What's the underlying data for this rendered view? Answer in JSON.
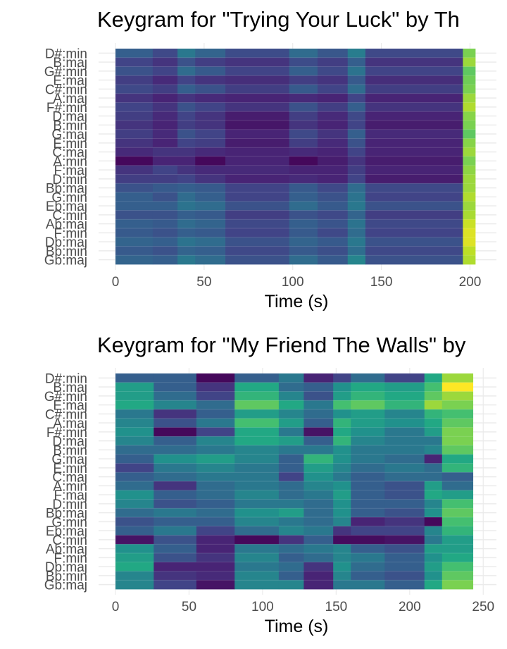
{
  "chart_data": [
    {
      "type": "heatmap",
      "title": "Keygram for \"Trying Your Luck\" by Th",
      "xlabel": "Time (s)",
      "ylabel": "",
      "xlim": [
        0,
        205
      ],
      "xticks": [
        0,
        50,
        100,
        150,
        200
      ],
      "grid": true,
      "legend": "none",
      "colormap": "viridis",
      "keys": [
        "D#:min",
        "B:maj",
        "G#:min",
        "E:maj",
        "C#:min",
        "A:maj",
        "F#:min",
        "D:maj",
        "B:min",
        "G:maj",
        "E:min",
        "C:maj",
        "A:min",
        "F:maj",
        "D:min",
        "Bb:maj",
        "G:min",
        "Eb:maj",
        "C:min",
        "Ab:maj",
        "F:min",
        "Db:maj",
        "Bb:min",
        "Gb:maj"
      ],
      "time_edges": [
        0,
        21,
        35,
        45,
        62,
        98,
        114,
        131,
        141,
        196,
        203
      ],
      "values": [
        [
          0.3,
          0.22,
          0.4,
          0.32,
          0.23,
          0.35,
          0.27,
          0.42,
          0.22,
          0.8
        ],
        [
          0.2,
          0.15,
          0.25,
          0.18,
          0.15,
          0.23,
          0.18,
          0.3,
          0.15,
          0.85
        ],
        [
          0.25,
          0.2,
          0.35,
          0.28,
          0.2,
          0.3,
          0.22,
          0.38,
          0.2,
          0.75
        ],
        [
          0.18,
          0.12,
          0.2,
          0.15,
          0.13,
          0.18,
          0.15,
          0.28,
          0.13,
          0.78
        ],
        [
          0.22,
          0.18,
          0.3,
          0.25,
          0.18,
          0.28,
          0.2,
          0.35,
          0.18,
          0.8
        ],
        [
          0.15,
          0.1,
          0.15,
          0.12,
          0.1,
          0.12,
          0.1,
          0.2,
          0.1,
          0.85
        ],
        [
          0.2,
          0.15,
          0.25,
          0.2,
          0.15,
          0.25,
          0.18,
          0.3,
          0.15,
          0.88
        ],
        [
          0.18,
          0.12,
          0.2,
          0.15,
          0.08,
          0.18,
          0.12,
          0.22,
          0.1,
          0.82
        ],
        [
          0.15,
          0.1,
          0.18,
          0.15,
          0.06,
          0.15,
          0.1,
          0.2,
          0.08,
          0.8
        ],
        [
          0.18,
          0.12,
          0.25,
          0.2,
          0.1,
          0.22,
          0.15,
          0.3,
          0.12,
          0.75
        ],
        [
          0.15,
          0.1,
          0.2,
          0.18,
          0.08,
          0.18,
          0.12,
          0.25,
          0.1,
          0.82
        ],
        [
          0.12,
          0.15,
          0.15,
          0.12,
          0.1,
          0.12,
          0.1,
          0.2,
          0.1,
          0.85
        ],
        [
          0.02,
          0.1,
          0.1,
          0.02,
          0.1,
          0.02,
          0.08,
          0.15,
          0.08,
          0.8
        ],
        [
          0.15,
          0.2,
          0.15,
          0.12,
          0.12,
          0.1,
          0.1,
          0.18,
          0.1,
          0.83
        ],
        [
          0.18,
          0.18,
          0.2,
          0.15,
          0.1,
          0.12,
          0.1,
          0.2,
          0.08,
          0.85
        ],
        [
          0.25,
          0.28,
          0.3,
          0.28,
          0.2,
          0.28,
          0.22,
          0.35,
          0.22,
          0.85
        ],
        [
          0.3,
          0.25,
          0.35,
          0.3,
          0.2,
          0.3,
          0.25,
          0.38,
          0.2,
          0.88
        ],
        [
          0.3,
          0.3,
          0.38,
          0.35,
          0.25,
          0.35,
          0.28,
          0.4,
          0.25,
          0.85
        ],
        [
          0.25,
          0.25,
          0.3,
          0.28,
          0.18,
          0.25,
          0.22,
          0.32,
          0.18,
          0.87
        ],
        [
          0.3,
          0.28,
          0.35,
          0.32,
          0.22,
          0.3,
          0.26,
          0.38,
          0.22,
          0.92
        ],
        [
          0.28,
          0.25,
          0.3,
          0.28,
          0.2,
          0.28,
          0.22,
          0.35,
          0.2,
          0.95
        ],
        [
          0.32,
          0.3,
          0.38,
          0.35,
          0.25,
          0.32,
          0.28,
          0.4,
          0.25,
          0.95
        ],
        [
          0.28,
          0.25,
          0.32,
          0.3,
          0.22,
          0.28,
          0.24,
          0.36,
          0.22,
          0.9
        ],
        [
          0.32,
          0.3,
          0.4,
          0.35,
          0.25,
          0.35,
          0.28,
          0.45,
          0.25,
          0.88
        ]
      ]
    },
    {
      "type": "heatmap",
      "title": "Keygram for \"My Friend The Walls\" by",
      "xlabel": "Time (s)",
      "ylabel": "",
      "xlim": [
        0,
        247
      ],
      "xticks": [
        0,
        50,
        100,
        150,
        200,
        250
      ],
      "grid": true,
      "legend": "none",
      "colormap": "viridis",
      "keys": [
        "D#:min",
        "B:maj",
        "G#:min",
        "E:maj",
        "C#:min",
        "A:maj",
        "F#:min",
        "D:maj",
        "B:min",
        "G:maj",
        "E:min",
        "C:maj",
        "A:min",
        "F:maj",
        "D:min",
        "Bb:maj",
        "G:min",
        "Eb:maj",
        "C:min",
        "Ab:maj",
        "F:min",
        "Db:maj",
        "Bb:min",
        "Gb:maj"
      ],
      "time_edges": [
        0,
        26,
        55,
        81,
        111,
        128,
        148,
        160,
        183,
        210,
        222,
        243
      ],
      "values": [
        [
          0.3,
          0.3,
          0.02,
          0.3,
          0.4,
          0.1,
          0.2,
          0.35,
          0.2,
          0.6,
          0.85
        ],
        [
          0.55,
          0.3,
          0.15,
          0.6,
          0.35,
          0.3,
          0.5,
          0.6,
          0.55,
          0.7,
          1.0
        ],
        [
          0.55,
          0.35,
          0.2,
          0.65,
          0.45,
          0.25,
          0.55,
          0.65,
          0.6,
          0.75,
          0.85
        ],
        [
          0.6,
          0.45,
          0.35,
          0.75,
          0.6,
          0.4,
          0.7,
          0.75,
          0.65,
          0.85,
          0.8
        ],
        [
          0.4,
          0.15,
          0.3,
          0.55,
          0.45,
          0.35,
          0.5,
          0.55,
          0.45,
          0.65,
          0.7
        ],
        [
          0.45,
          0.25,
          0.4,
          0.7,
          0.55,
          0.3,
          0.65,
          0.55,
          0.5,
          0.6,
          0.75
        ],
        [
          0.5,
          0.02,
          0.2,
          0.6,
          0.4,
          0.05,
          0.6,
          0.5,
          0.4,
          0.55,
          0.8
        ],
        [
          0.45,
          0.3,
          0.45,
          0.6,
          0.55,
          0.3,
          0.65,
          0.45,
          0.4,
          0.4,
          0.8
        ],
        [
          0.35,
          0.35,
          0.4,
          0.45,
          0.4,
          0.4,
          0.5,
          0.4,
          0.4,
          0.45,
          0.75
        ],
        [
          0.3,
          0.5,
          0.55,
          0.45,
          0.3,
          0.65,
          0.5,
          0.4,
          0.35,
          0.1,
          0.6
        ],
        [
          0.2,
          0.4,
          0.45,
          0.4,
          0.3,
          0.55,
          0.45,
          0.35,
          0.4,
          0.35,
          0.65
        ],
        [
          0.3,
          0.35,
          0.4,
          0.4,
          0.2,
          0.5,
          0.4,
          0.3,
          0.35,
          0.35,
          0.3
        ],
        [
          0.35,
          0.15,
          0.35,
          0.4,
          0.35,
          0.45,
          0.5,
          0.3,
          0.25,
          0.55,
          0.35
        ],
        [
          0.5,
          0.3,
          0.35,
          0.45,
          0.35,
          0.4,
          0.55,
          0.3,
          0.25,
          0.6,
          0.55
        ],
        [
          0.45,
          0.25,
          0.3,
          0.4,
          0.4,
          0.35,
          0.5,
          0.3,
          0.3,
          0.45,
          0.7
        ],
        [
          0.35,
          0.4,
          0.35,
          0.5,
          0.55,
          0.35,
          0.5,
          0.3,
          0.25,
          0.5,
          0.75
        ],
        [
          0.25,
          0.3,
          0.3,
          0.45,
          0.4,
          0.35,
          0.45,
          0.1,
          0.15,
          0.02,
          0.7
        ],
        [
          0.3,
          0.4,
          0.2,
          0.35,
          0.45,
          0.4,
          0.15,
          0.2,
          0.2,
          0.45,
          0.65
        ],
        [
          0.05,
          0.25,
          0.1,
          0.02,
          0.15,
          0.3,
          0.03,
          0.03,
          0.05,
          0.4,
          0.55
        ],
        [
          0.5,
          0.3,
          0.1,
          0.4,
          0.35,
          0.4,
          0.45,
          0.3,
          0.25,
          0.55,
          0.55
        ],
        [
          0.55,
          0.25,
          0.15,
          0.45,
          0.3,
          0.35,
          0.45,
          0.4,
          0.3,
          0.5,
          0.6
        ],
        [
          0.6,
          0.1,
          0.1,
          0.4,
          0.35,
          0.15,
          0.5,
          0.35,
          0.3,
          0.55,
          0.7
        ],
        [
          0.45,
          0.15,
          0.12,
          0.45,
          0.3,
          0.1,
          0.45,
          0.3,
          0.25,
          0.5,
          0.75
        ],
        [
          0.45,
          0.2,
          0.05,
          0.45,
          0.45,
          0.1,
          0.4,
          0.4,
          0.3,
          0.6,
          0.8
        ]
      ]
    }
  ]
}
